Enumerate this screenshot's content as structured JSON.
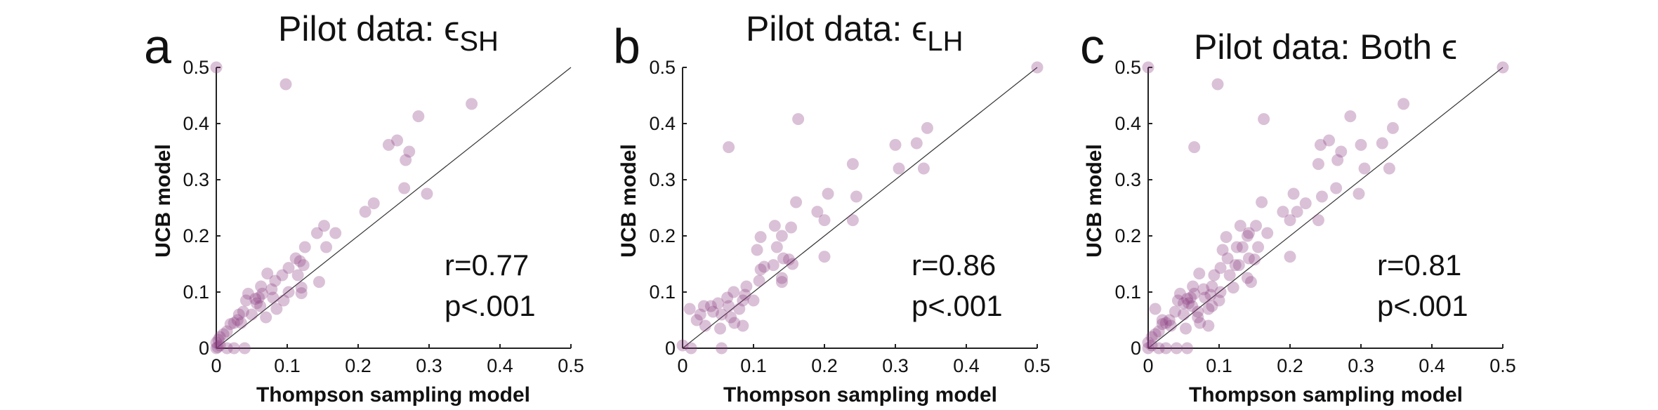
{
  "colors": {
    "point": "#8d3d82",
    "axis": "#222222",
    "identity_line": "#333333"
  },
  "chart_data": [
    {
      "type": "scatter",
      "panel_letter": "a",
      "title": "Pilot data: ",
      "title_symbol": "ϵ",
      "title_subscript": "SH",
      "xlabel": "Thompson sampling model",
      "ylabel": "UCB model",
      "xlim": [
        0,
        0.5
      ],
      "ylim": [
        0,
        0.5
      ],
      "xticks": [
        "0",
        "0.1",
        "0.2",
        "0.3",
        "0.4",
        "0.5"
      ],
      "yticks": [
        "0",
        "0.1",
        "0.2",
        "0.3",
        "0.4",
        "0.5"
      ],
      "identity_line": true,
      "annotation_r": "r=0.77",
      "annotation_p": "p<.001",
      "points": [
        [
          0.0,
          0.5
        ],
        [
          0.098,
          0.47
        ],
        [
          0.36,
          0.435
        ],
        [
          0.285,
          0.413
        ],
        [
          0.272,
          0.35
        ],
        [
          0.255,
          0.37
        ],
        [
          0.243,
          0.362
        ],
        [
          0.267,
          0.335
        ],
        [
          0.297,
          0.275
        ],
        [
          0.265,
          0.285
        ],
        [
          0.222,
          0.258
        ],
        [
          0.21,
          0.243
        ],
        [
          0.152,
          0.218
        ],
        [
          0.142,
          0.205
        ],
        [
          0.168,
          0.205
        ],
        [
          0.155,
          0.18
        ],
        [
          0.125,
          0.18
        ],
        [
          0.112,
          0.16
        ],
        [
          0.123,
          0.148
        ],
        [
          0.118,
          0.155
        ],
        [
          0.102,
          0.143
        ],
        [
          0.072,
          0.133
        ],
        [
          0.093,
          0.13
        ],
        [
          0.115,
          0.13
        ],
        [
          0.12,
          0.108
        ],
        [
          0.12,
          0.098
        ],
        [
          0.145,
          0.118
        ],
        [
          0.063,
          0.11
        ],
        [
          0.078,
          0.105
        ],
        [
          0.083,
          0.12
        ],
        [
          0.102,
          0.1
        ],
        [
          0.065,
          0.097
        ],
        [
          0.045,
          0.097
        ],
        [
          0.057,
          0.08
        ],
        [
          0.062,
          0.075
        ],
        [
          0.055,
          0.088
        ],
        [
          0.042,
          0.085
        ],
        [
          0.038,
          0.065
        ],
        [
          0.05,
          0.06
        ],
        [
          0.03,
          0.05
        ],
        [
          0.032,
          0.06
        ],
        [
          0.025,
          0.045
        ],
        [
          0.035,
          0.045
        ],
        [
          0.02,
          0.043
        ],
        [
          0.015,
          0.03
        ],
        [
          0.01,
          0.025
        ],
        [
          0.005,
          0.02
        ],
        [
          0.003,
          0.015
        ],
        [
          0.0,
          0.01
        ],
        [
          0.005,
          0.005
        ],
        [
          0.0,
          0.0
        ],
        [
          0.002,
          0.002
        ],
        [
          0.015,
          0.0
        ],
        [
          0.025,
          0.0
        ],
        [
          0.04,
          0.0
        ],
        [
          0.07,
          0.055
        ],
        [
          0.085,
          0.07
        ],
        [
          0.095,
          0.085
        ],
        [
          0.06,
          0.09
        ],
        [
          0.08,
          0.09
        ]
      ]
    },
    {
      "type": "scatter",
      "panel_letter": "b",
      "title": "Pilot data: ",
      "title_symbol": "ϵ",
      "title_subscript": "LH",
      "xlabel": "Thompson sampling model",
      "ylabel": "UCB model",
      "xlim": [
        0,
        0.5
      ],
      "ylim": [
        0,
        0.5
      ],
      "xticks": [
        "0",
        "0.1",
        "0.2",
        "0.3",
        "0.4",
        "0.5"
      ],
      "yticks": [
        "0",
        "0.1",
        "0.2",
        "0.3",
        "0.4",
        "0.5"
      ],
      "identity_line": true,
      "annotation_r": "r=0.86",
      "annotation_p": "p<.001",
      "points": [
        [
          0.5,
          0.5
        ],
        [
          0.163,
          0.408
        ],
        [
          0.345,
          0.392
        ],
        [
          0.33,
          0.365
        ],
        [
          0.3,
          0.362
        ],
        [
          0.065,
          0.358
        ],
        [
          0.34,
          0.32
        ],
        [
          0.305,
          0.32
        ],
        [
          0.24,
          0.328
        ],
        [
          0.245,
          0.27
        ],
        [
          0.205,
          0.275
        ],
        [
          0.16,
          0.26
        ],
        [
          0.19,
          0.243
        ],
        [
          0.24,
          0.228
        ],
        [
          0.2,
          0.228
        ],
        [
          0.153,
          0.215
        ],
        [
          0.13,
          0.218
        ],
        [
          0.14,
          0.2
        ],
        [
          0.11,
          0.198
        ],
        [
          0.133,
          0.18
        ],
        [
          0.105,
          0.175
        ],
        [
          0.142,
          0.16
        ],
        [
          0.15,
          0.158
        ],
        [
          0.2,
          0.163
        ],
        [
          0.155,
          0.15
        ],
        [
          0.128,
          0.148
        ],
        [
          0.115,
          0.145
        ],
        [
          0.11,
          0.14
        ],
        [
          0.108,
          0.12
        ],
        [
          0.14,
          0.118
        ],
        [
          0.14,
          0.125
        ],
        [
          0.09,
          0.11
        ],
        [
          0.088,
          0.095
        ],
        [
          0.085,
          0.085
        ],
        [
          0.072,
          0.1
        ],
        [
          0.063,
          0.09
        ],
        [
          0.065,
          0.075
        ],
        [
          0.05,
          0.08
        ],
        [
          0.04,
          0.075
        ],
        [
          0.03,
          0.075
        ],
        [
          0.043,
          0.065
        ],
        [
          0.055,
          0.06
        ],
        [
          0.068,
          0.055
        ],
        [
          0.08,
          0.07
        ],
        [
          0.1,
          0.085
        ],
        [
          0.073,
          0.045
        ],
        [
          0.053,
          0.035
        ],
        [
          0.032,
          0.04
        ],
        [
          0.02,
          0.05
        ],
        [
          0.01,
          0.07
        ],
        [
          0.025,
          0.06
        ],
        [
          0.012,
          0.0
        ],
        [
          0.055,
          0.0
        ],
        [
          0.0,
          0.005
        ],
        [
          0.085,
          0.04
        ]
      ]
    },
    {
      "type": "scatter",
      "panel_letter": "c",
      "title": "Pilot data: Both ",
      "title_symbol": "ϵ",
      "title_subscript": "",
      "xlabel": "Thompson sampling model",
      "ylabel": "UCB model",
      "xlim": [
        0,
        0.5
      ],
      "ylim": [
        0,
        0.5
      ],
      "xticks": [
        "0",
        "0.1",
        "0.2",
        "0.3",
        "0.4",
        "0.5"
      ],
      "yticks": [
        "0",
        "0.1",
        "0.2",
        "0.3",
        "0.4",
        "0.5"
      ],
      "identity_line": true,
      "annotation_r": "r=0.81",
      "annotation_p": "p<.001",
      "points": [
        [
          0.0,
          0.5
        ],
        [
          0.5,
          0.5
        ],
        [
          0.098,
          0.47
        ],
        [
          0.36,
          0.435
        ],
        [
          0.285,
          0.413
        ],
        [
          0.163,
          0.408
        ],
        [
          0.345,
          0.392
        ],
        [
          0.255,
          0.37
        ],
        [
          0.243,
          0.362
        ],
        [
          0.33,
          0.365
        ],
        [
          0.3,
          0.362
        ],
        [
          0.065,
          0.358
        ],
        [
          0.272,
          0.35
        ],
        [
          0.267,
          0.335
        ],
        [
          0.24,
          0.328
        ],
        [
          0.34,
          0.32
        ],
        [
          0.305,
          0.32
        ],
        [
          0.265,
          0.285
        ],
        [
          0.297,
          0.275
        ],
        [
          0.205,
          0.275
        ],
        [
          0.245,
          0.27
        ],
        [
          0.16,
          0.26
        ],
        [
          0.222,
          0.258
        ],
        [
          0.21,
          0.243
        ],
        [
          0.19,
          0.243
        ],
        [
          0.24,
          0.228
        ],
        [
          0.2,
          0.228
        ],
        [
          0.152,
          0.218
        ],
        [
          0.13,
          0.218
        ],
        [
          0.142,
          0.205
        ],
        [
          0.168,
          0.205
        ],
        [
          0.14,
          0.2
        ],
        [
          0.11,
          0.198
        ],
        [
          0.155,
          0.18
        ],
        [
          0.125,
          0.18
        ],
        [
          0.133,
          0.18
        ],
        [
          0.105,
          0.175
        ],
        [
          0.112,
          0.16
        ],
        [
          0.142,
          0.16
        ],
        [
          0.2,
          0.163
        ],
        [
          0.123,
          0.148
        ],
        [
          0.15,
          0.158
        ],
        [
          0.102,
          0.143
        ],
        [
          0.128,
          0.148
        ],
        [
          0.072,
          0.133
        ],
        [
          0.093,
          0.13
        ],
        [
          0.115,
          0.13
        ],
        [
          0.12,
          0.108
        ],
        [
          0.145,
          0.118
        ],
        [
          0.14,
          0.125
        ],
        [
          0.063,
          0.11
        ],
        [
          0.078,
          0.105
        ],
        [
          0.09,
          0.11
        ],
        [
          0.102,
          0.1
        ],
        [
          0.065,
          0.097
        ],
        [
          0.045,
          0.097
        ],
        [
          0.088,
          0.095
        ],
        [
          0.057,
          0.08
        ],
        [
          0.062,
          0.075
        ],
        [
          0.055,
          0.088
        ],
        [
          0.042,
          0.085
        ],
        [
          0.05,
          0.08
        ],
        [
          0.038,
          0.065
        ],
        [
          0.05,
          0.06
        ],
        [
          0.03,
          0.05
        ],
        [
          0.025,
          0.045
        ],
        [
          0.02,
          0.043
        ],
        [
          0.015,
          0.03
        ],
        [
          0.01,
          0.025
        ],
        [
          0.005,
          0.02
        ],
        [
          0.0,
          0.01
        ],
        [
          0.0,
          0.0
        ],
        [
          0.005,
          0.005
        ],
        [
          0.015,
          0.0
        ],
        [
          0.025,
          0.0
        ],
        [
          0.04,
          0.0
        ],
        [
          0.055,
          0.0
        ],
        [
          0.073,
          0.045
        ],
        [
          0.053,
          0.035
        ],
        [
          0.032,
          0.04
        ],
        [
          0.02,
          0.05
        ],
        [
          0.01,
          0.07
        ],
        [
          0.085,
          0.04
        ],
        [
          0.07,
          0.055
        ],
        [
          0.085,
          0.07
        ],
        [
          0.1,
          0.085
        ],
        [
          0.06,
          0.09
        ],
        [
          0.08,
          0.09
        ],
        [
          0.07,
          0.065
        ],
        [
          0.09,
          0.075
        ]
      ]
    }
  ]
}
